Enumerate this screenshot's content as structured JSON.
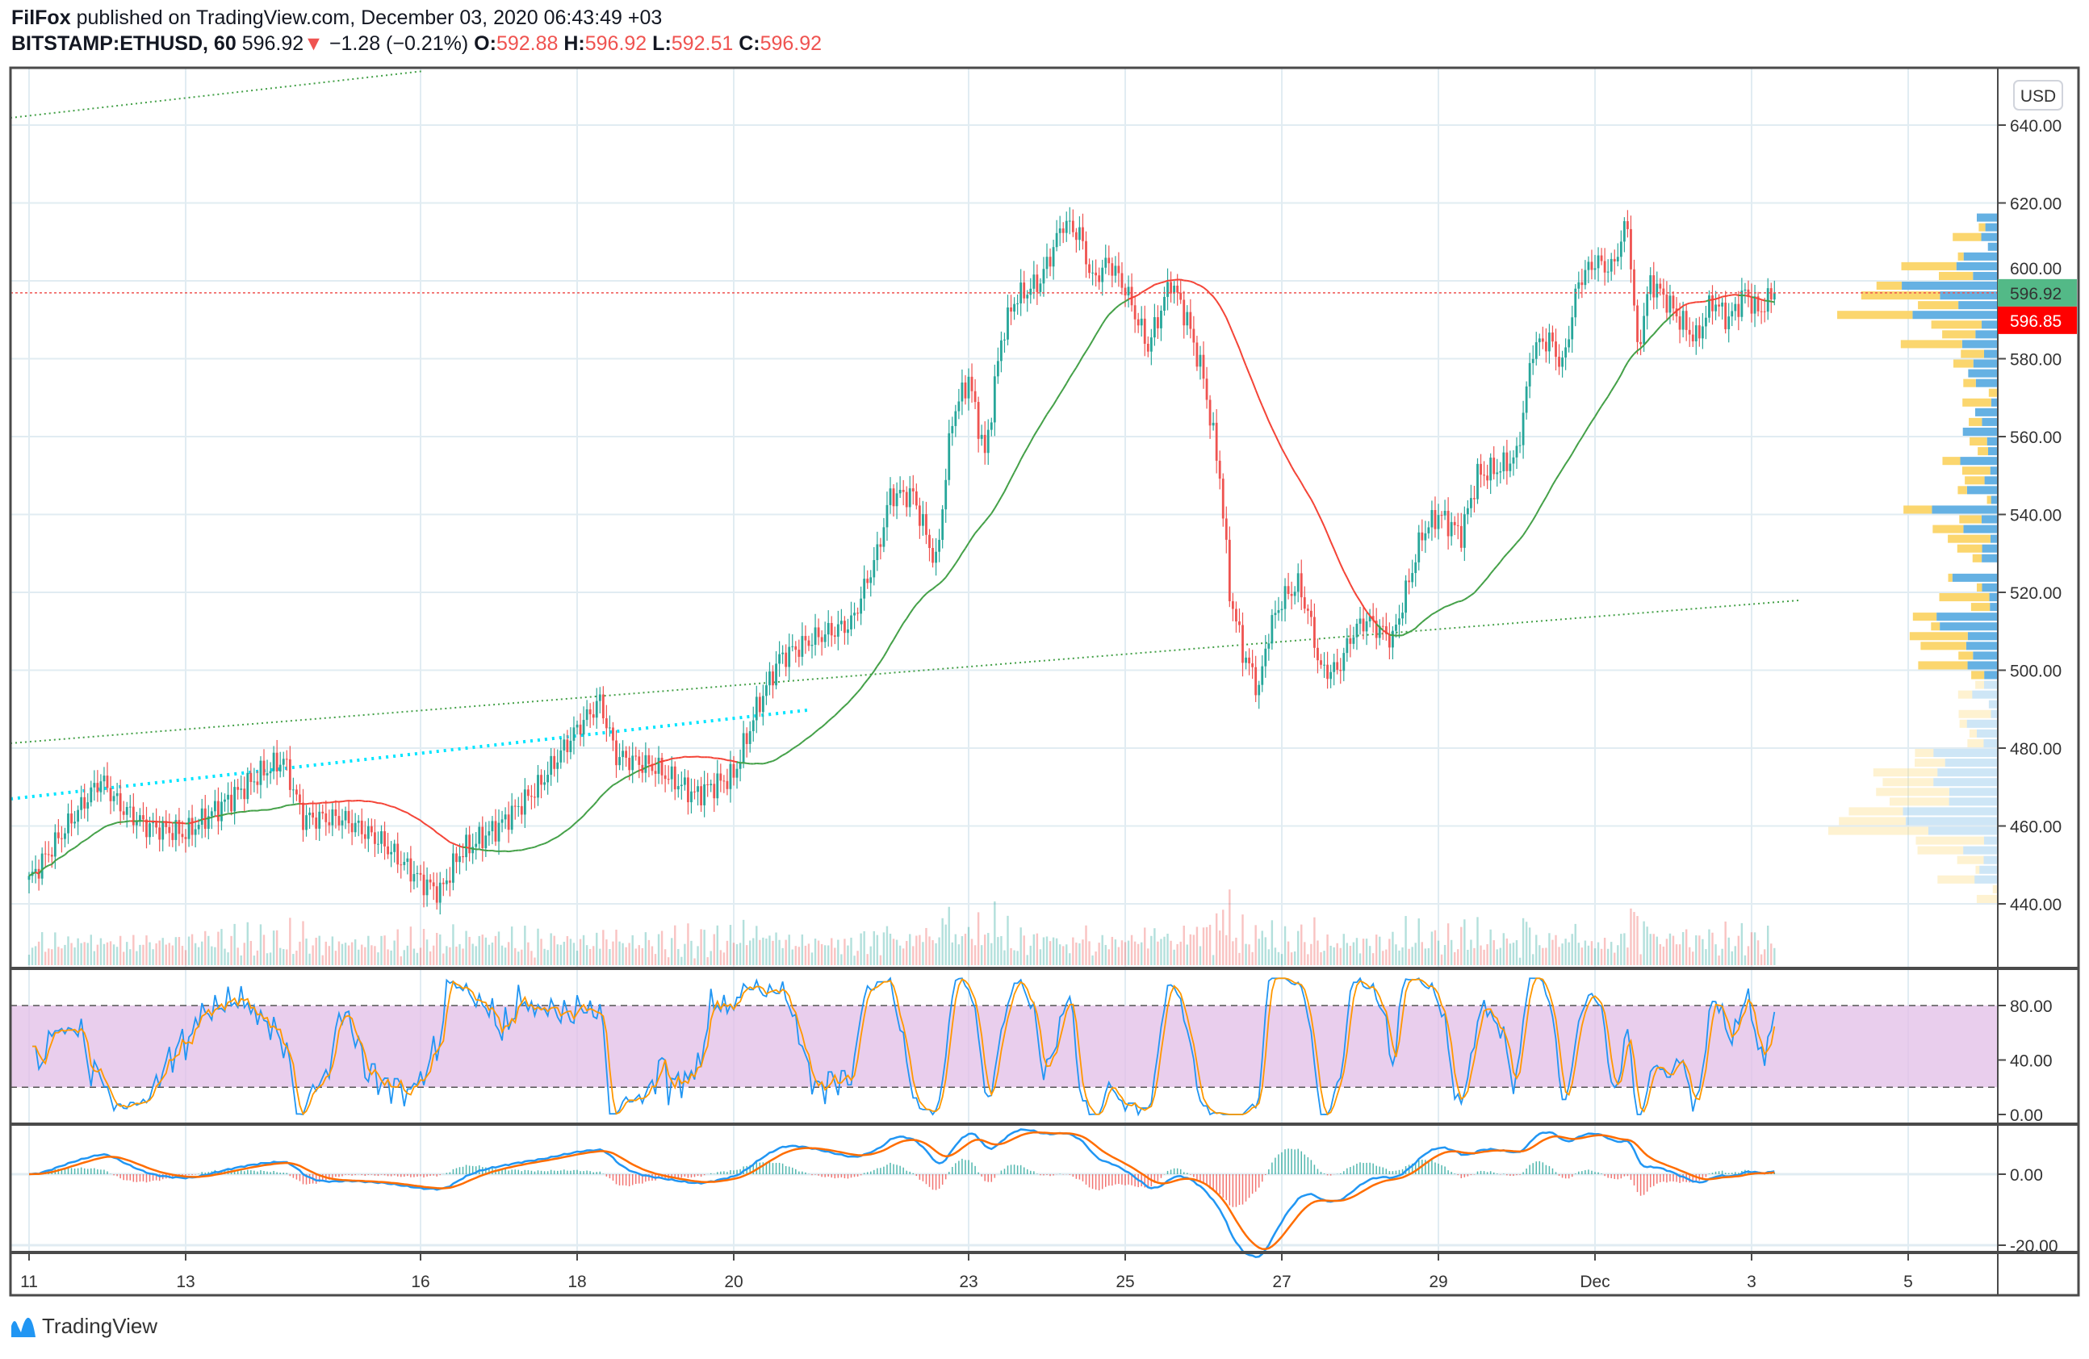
{
  "header": {
    "author": "FilFox",
    "published": "published on TradingView.com, December 03, 2020 06:43:49 +03",
    "symbol": "BITSTAMP:ETHUSD, 60",
    "last": "596.92",
    "change": "−1.28 (−0.21%)",
    "o_label": "O:",
    "o": "592.88",
    "h_label": "H:",
    "h": "596.92",
    "l_label": "L:",
    "l": "592.51",
    "c_label": "C:",
    "c": "596.92"
  },
  "currency_button": "USD",
  "price_labels": {
    "last": "596.92",
    "last_color": "#53b987",
    "bid": "596.85",
    "bid_color": "#ff0000"
  },
  "footer": {
    "logo_text": "TradingView"
  },
  "colors": {
    "up": "#26a69a",
    "down": "#ef5350",
    "ma_up": "#43a047",
    "ma_down": "#f44336",
    "macd": "#2196f3",
    "signal": "#ff6d00",
    "stoch_fill": "#e1bee7",
    "vp_up": "#5dade2",
    "vp_down": "#fbd466"
  },
  "chart_data": [
    {
      "type": "candlestick",
      "pane": "price",
      "ylim": [
        430,
        650
      ],
      "y_ticks": [
        "440.00",
        "460.00",
        "480.00",
        "500.00",
        "520.00",
        "540.00",
        "560.00",
        "580.00",
        "600.00",
        "620.00",
        "640.00"
      ],
      "x_ticks": [
        {
          "label": "11",
          "date": "2020-11-11"
        },
        {
          "label": "13",
          "date": "2020-11-13"
        },
        {
          "label": "16",
          "date": "2020-11-16"
        },
        {
          "label": "18",
          "date": "2020-11-18"
        },
        {
          "label": "20",
          "date": "2020-11-20"
        },
        {
          "label": "23",
          "date": "2020-11-23"
        },
        {
          "label": "25",
          "date": "2020-11-25"
        },
        {
          "label": "27",
          "date": "2020-11-27"
        },
        {
          "label": "29",
          "date": "2020-11-29"
        },
        {
          "label": "Dec",
          "date": "2020-12-01"
        },
        {
          "label": "3",
          "date": "2020-12-03"
        },
        {
          "label": "5",
          "date": "2020-12-05"
        }
      ],
      "approx_close_path": [
        [
          "2020-11-11T00",
          446
        ],
        [
          "2020-11-11T10",
          458
        ],
        [
          "2020-11-11T22",
          472
        ],
        [
          "2020-11-12T04",
          465
        ],
        [
          "2020-11-12T12",
          460
        ],
        [
          "2020-11-13T00",
          458
        ],
        [
          "2020-11-13T12",
          466
        ],
        [
          "2020-11-14T00",
          474
        ],
        [
          "2020-11-14T06",
          477
        ],
        [
          "2020-11-14T12",
          462
        ],
        [
          "2020-11-15T00",
          462
        ],
        [
          "2020-11-15T12",
          456
        ],
        [
          "2020-11-16T00",
          446
        ],
        [
          "2020-11-16T06",
          443
        ],
        [
          "2020-11-16T12",
          453
        ],
        [
          "2020-11-17T00",
          460
        ],
        [
          "2020-11-17T12",
          470
        ],
        [
          "2020-11-18T00",
          485
        ],
        [
          "2020-11-18T07",
          492
        ],
        [
          "2020-11-18T12",
          478
        ],
        [
          "2020-11-19T00",
          475
        ],
        [
          "2020-11-19T12",
          468
        ],
        [
          "2020-11-20T00",
          473
        ],
        [
          "2020-11-20T07",
          490
        ],
        [
          "2020-11-20T14",
          503
        ],
        [
          "2020-11-21T00",
          508
        ],
        [
          "2020-11-21T12",
          512
        ],
        [
          "2020-11-21T20",
          530
        ],
        [
          "2020-11-22T00",
          545
        ],
        [
          "2020-11-22T07",
          545
        ],
        [
          "2020-11-22T14",
          527
        ],
        [
          "2020-11-22T19",
          565
        ],
        [
          "2020-11-23T00",
          575
        ],
        [
          "2020-11-23T05",
          555
        ],
        [
          "2020-11-23T10",
          585
        ],
        [
          "2020-11-23T14",
          595
        ],
        [
          "2020-11-23T22",
          600
        ],
        [
          "2020-11-24T05",
          615
        ],
        [
          "2020-11-24T10",
          612
        ],
        [
          "2020-11-24T14",
          600
        ],
        [
          "2020-11-24T19",
          605
        ],
        [
          "2020-11-25T00",
          598
        ],
        [
          "2020-11-25T07",
          583
        ],
        [
          "2020-11-25T14",
          600
        ],
        [
          "2020-11-25T19",
          590
        ],
        [
          "2020-11-26T00",
          575
        ],
        [
          "2020-11-26T05",
          550
        ],
        [
          "2020-11-26T08",
          520
        ],
        [
          "2020-11-26T12",
          505
        ],
        [
          "2020-11-26T17",
          495
        ],
        [
          "2020-11-26T20",
          510
        ],
        [
          "2020-11-27T00",
          518
        ],
        [
          "2020-11-27T05",
          522
        ],
        [
          "2020-11-27T08",
          515
        ],
        [
          "2020-11-27T12",
          500
        ],
        [
          "2020-11-27T17",
          500
        ],
        [
          "2020-11-27T22",
          510
        ],
        [
          "2020-11-28T02",
          513
        ],
        [
          "2020-11-28T10",
          508
        ],
        [
          "2020-11-28T14",
          520
        ],
        [
          "2020-11-28T19",
          535
        ],
        [
          "2020-11-29T00",
          540
        ],
        [
          "2020-11-29T07",
          535
        ],
        [
          "2020-11-29T12",
          550
        ],
        [
          "2020-11-29T19",
          552
        ],
        [
          "2020-11-30T00",
          555
        ],
        [
          "2020-11-30T05",
          583
        ],
        [
          "2020-11-30T10",
          585
        ],
        [
          "2020-11-30T14",
          578
        ],
        [
          "2020-11-30T19",
          600
        ],
        [
          "2020-12-01T00",
          605
        ],
        [
          "2020-12-01T05",
          603
        ],
        [
          "2020-12-01T10",
          615
        ],
        [
          "2020-12-01T13",
          582
        ],
        [
          "2020-12-01T17",
          600
        ],
        [
          "2020-12-01T22",
          595
        ],
        [
          "2020-12-02T02",
          590
        ],
        [
          "2020-12-02T07",
          585
        ],
        [
          "2020-12-02T12",
          595
        ],
        [
          "2020-12-02T17",
          590
        ],
        [
          "2020-12-02T22",
          597
        ],
        [
          "2020-12-03T02",
          592
        ],
        [
          "2020-12-03T07",
          596.92
        ]
      ],
      "last_price": 596.92
    },
    {
      "type": "line",
      "pane": "stoch_rsi",
      "ylim": [
        -5,
        110
      ],
      "y_ticks": [
        "0.00",
        "40.00",
        "80.00"
      ],
      "bands": [
        20,
        80
      ]
    },
    {
      "type": "line+histogram",
      "pane": "macd",
      "ylim": [
        -22,
        17
      ],
      "y_ticks": [
        "-20.00",
        "0.00"
      ]
    }
  ]
}
